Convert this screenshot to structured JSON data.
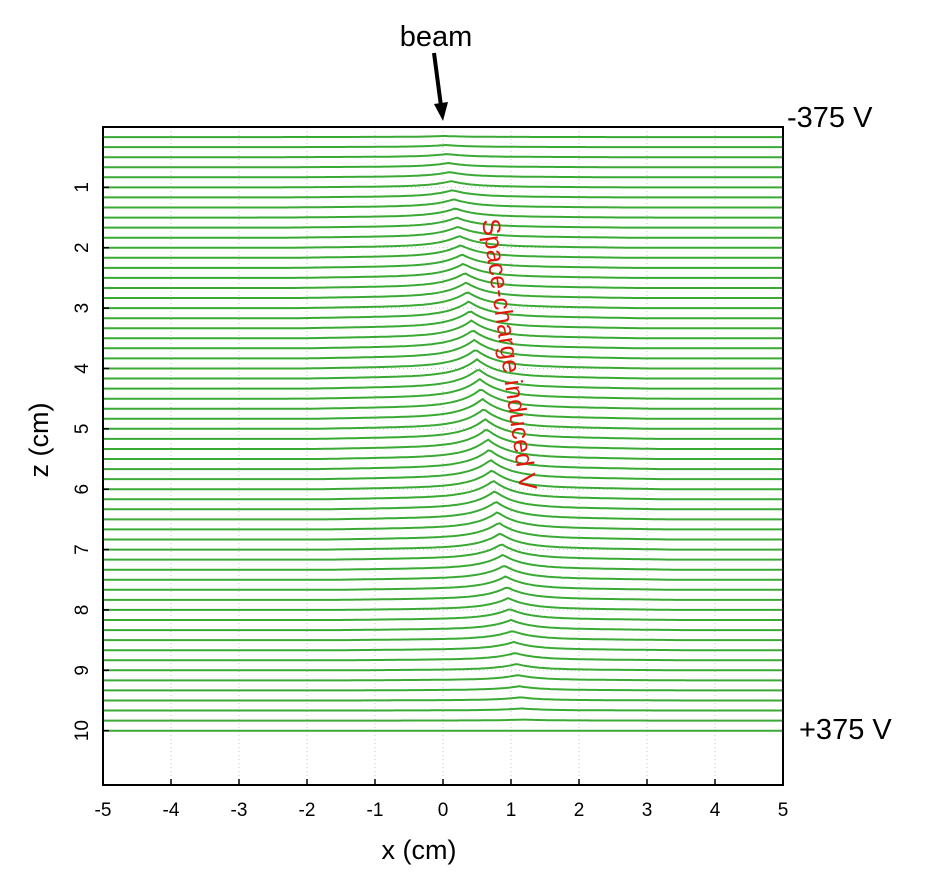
{
  "chart_data": {
    "type": "line",
    "xlabel": "x (cm)",
    "ylabel": "z (cm)",
    "xlim": [
      -5,
      5
    ],
    "ylim": [
      0,
      10.9
    ],
    "y_inverted": true,
    "x_ticks": [
      "-5",
      "-4",
      "-3",
      "-2",
      "-1",
      "0",
      "1",
      "2",
      "3",
      "4",
      "5"
    ],
    "y_ticks": [
      "1",
      "2",
      "3",
      "4",
      "5",
      "6",
      "7",
      "8",
      "9",
      "10"
    ],
    "grid": true,
    "line_color": "#3aaa35",
    "series_description_values": {
      "equipotential_count": 61,
      "z_top": 0,
      "z_bottom": 10,
      "peak_x_at_top": 0,
      "peak_x_at_bottom": 1.2,
      "peak_amplitude_max_cm": 0.28,
      "peak_halfwidth_cm": 0.3,
      "wing_slope": 0.02
    },
    "annotations": {
      "beam": "beam",
      "top_voltage": "-375 V",
      "bottom_voltage": "+375 V",
      "space_charge": "Space-charge induced V"
    }
  }
}
